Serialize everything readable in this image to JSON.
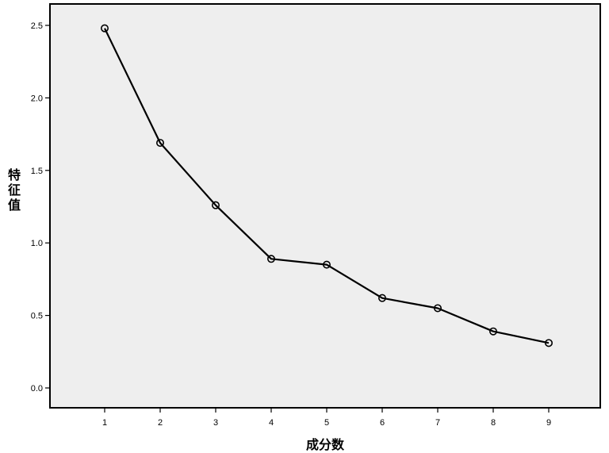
{
  "chart_data": {
    "type": "line",
    "title": "",
    "xlabel": "成分数",
    "ylabel": "特征值",
    "x": [
      "1",
      "2",
      "3",
      "4",
      "5",
      "6",
      "7",
      "8",
      "9"
    ],
    "yticks": [
      "0.0",
      "0.5",
      "1.0",
      "1.5",
      "2.0",
      "2.5"
    ],
    "ylim": [
      0,
      2.5
    ],
    "grid": false,
    "legend": "none",
    "series": [
      {
        "values": [
          2.48,
          1.69,
          1.26,
          0.89,
          0.85,
          0.62,
          0.55,
          0.39,
          0.31
        ]
      }
    ],
    "colors": {
      "plot_background": "#eeeeee",
      "line": "#000000",
      "marker": "#000000"
    }
  }
}
